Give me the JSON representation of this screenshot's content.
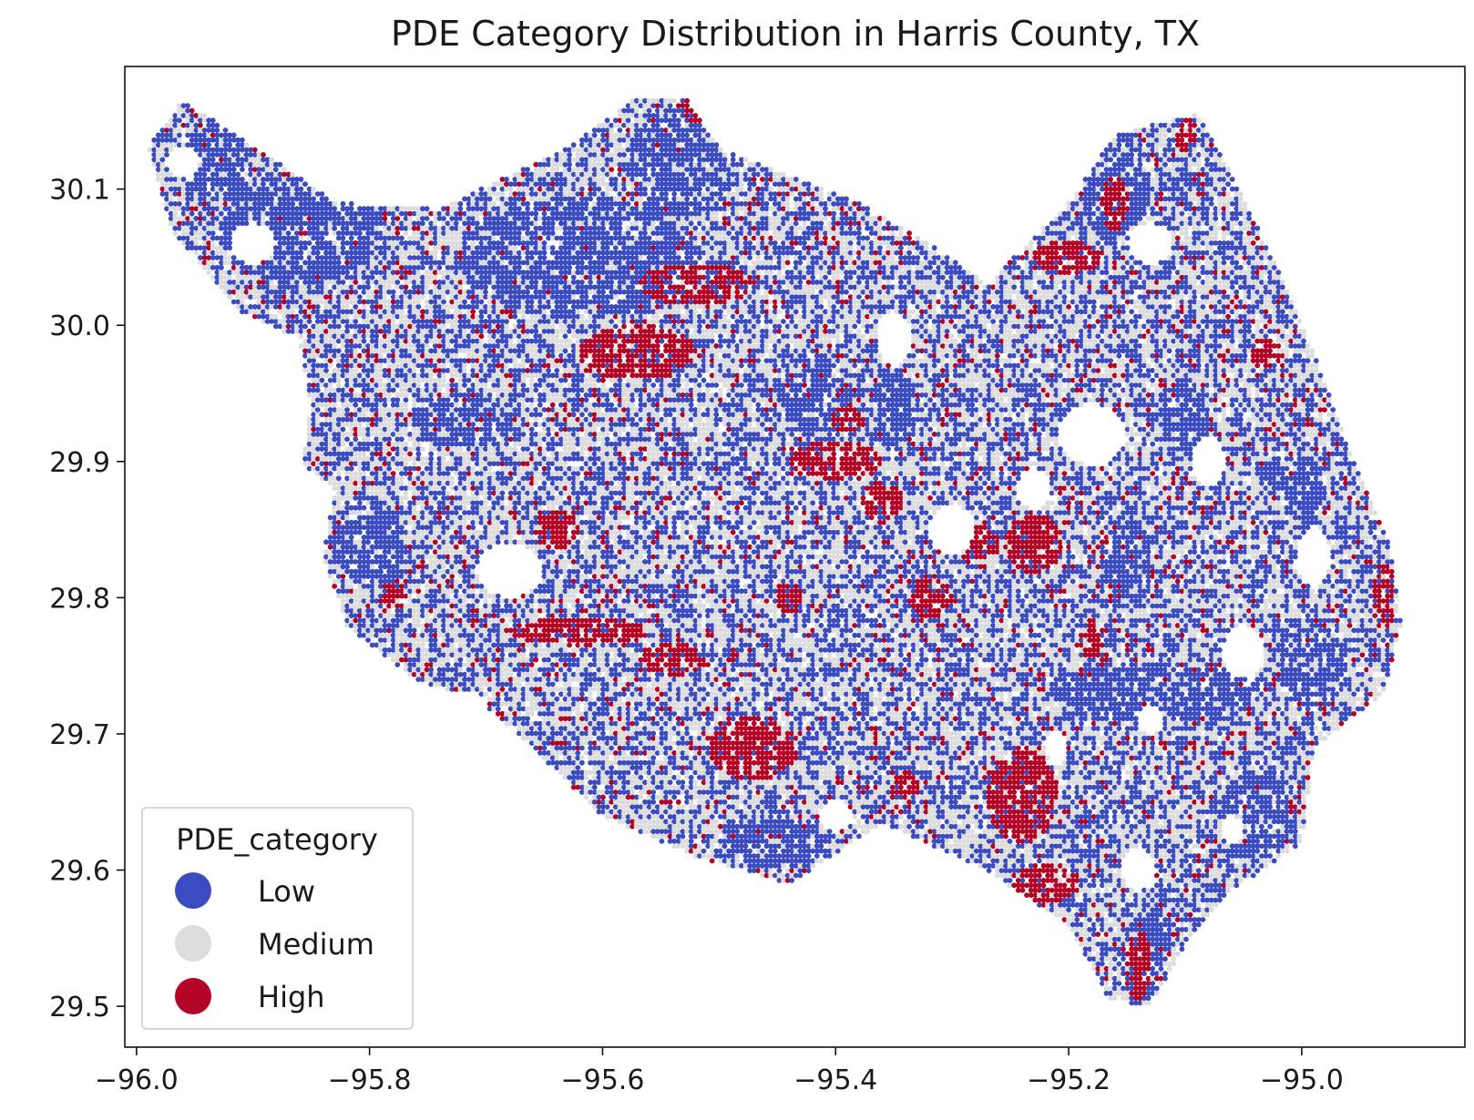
{
  "chart_data": {
    "type": "scatter",
    "title": "PDE Category Distribution in Harris County, TX",
    "xlabel": "",
    "ylabel": "",
    "xlim": [
      -96.01,
      -94.86
    ],
    "ylim": [
      29.47,
      30.19
    ],
    "x_ticks": [
      {
        "value": -96.0,
        "label": "−96.0"
      },
      {
        "value": -95.8,
        "label": "−95.8"
      },
      {
        "value": -95.6,
        "label": "−95.6"
      },
      {
        "value": -95.4,
        "label": "−95.4"
      },
      {
        "value": -95.2,
        "label": "−95.2"
      },
      {
        "value": -95.0,
        "label": "−95.0"
      }
    ],
    "y_ticks": [
      {
        "value": 29.5,
        "label": "29.5"
      },
      {
        "value": 29.6,
        "label": "29.6"
      },
      {
        "value": 29.7,
        "label": "29.7"
      },
      {
        "value": 29.8,
        "label": "29.8"
      },
      {
        "value": 29.9,
        "label": "29.9"
      },
      {
        "value": 30.0,
        "label": "30.0"
      },
      {
        "value": 30.1,
        "label": "30.1"
      }
    ],
    "grid": false,
    "legend": {
      "title": "PDE_category",
      "placement": "lower-left",
      "entries": [
        {
          "label": "Low",
          "color": "#3b4cc0"
        },
        {
          "label": "Medium",
          "color": "#dddddd"
        },
        {
          "label": "High",
          "color": "#b40426"
        }
      ]
    },
    "county_outline": [
      [
        -95.96,
        30.165
      ],
      [
        -95.88,
        30.12
      ],
      [
        -95.83,
        30.09
      ],
      [
        -95.74,
        30.085
      ],
      [
        -95.68,
        30.11
      ],
      [
        -95.63,
        30.13
      ],
      [
        -95.57,
        30.168
      ],
      [
        -95.53,
        30.168
      ],
      [
        -95.5,
        30.13
      ],
      [
        -95.44,
        30.11
      ],
      [
        -95.38,
        30.09
      ],
      [
        -95.32,
        30.06
      ],
      [
        -95.27,
        30.03
      ],
      [
        -95.2,
        30.09
      ],
      [
        -95.16,
        30.14
      ],
      [
        -95.09,
        30.155
      ],
      [
        -95.06,
        30.11
      ],
      [
        -95.02,
        30.04
      ],
      [
        -94.99,
        29.98
      ],
      [
        -94.96,
        29.91
      ],
      [
        -94.925,
        29.84
      ],
      [
        -94.915,
        29.78
      ],
      [
        -94.93,
        29.73
      ],
      [
        -94.99,
        29.69
      ],
      [
        -95.0,
        29.62
      ],
      [
        -95.06,
        29.585
      ],
      [
        -95.1,
        29.545
      ],
      [
        -95.13,
        29.5
      ],
      [
        -95.165,
        29.505
      ],
      [
        -95.2,
        29.56
      ],
      [
        -95.27,
        29.6
      ],
      [
        -95.36,
        29.635
      ],
      [
        -95.44,
        29.59
      ],
      [
        -95.52,
        29.61
      ],
      [
        -95.6,
        29.64
      ],
      [
        -95.66,
        29.69
      ],
      [
        -95.7,
        29.72
      ],
      [
        -95.76,
        29.74
      ],
      [
        -95.82,
        29.78
      ],
      [
        -95.84,
        29.83
      ],
      [
        -95.83,
        29.88
      ],
      [
        -95.86,
        29.9
      ],
      [
        -95.85,
        29.94
      ],
      [
        -95.86,
        29.99
      ],
      [
        -95.91,
        30.01
      ],
      [
        -95.97,
        30.07
      ],
      [
        -95.99,
        30.13
      ]
    ],
    "holes": [
      {
        "center": [
          -95.68,
          29.82
        ],
        "radius": [
          0.028,
          0.02
        ]
      },
      {
        "center": [
          -95.88,
          29.9
        ],
        "radius": [
          0.02,
          0.018
        ]
      },
      {
        "center": [
          -95.9,
          30.06
        ],
        "radius": [
          0.02,
          0.015
        ]
      },
      {
        "center": [
          -95.72,
          29.72
        ],
        "radius": [
          0.02,
          0.012
        ]
      },
      {
        "center": [
          -95.18,
          29.92
        ],
        "radius": [
          0.03,
          0.022
        ]
      },
      {
        "center": [
          -95.3,
          29.85
        ],
        "radius": [
          0.02,
          0.018
        ]
      },
      {
        "center": [
          -95.05,
          29.76
        ],
        "radius": [
          0.018,
          0.02
        ]
      },
      {
        "center": [
          -95.23,
          29.88
        ],
        "radius": [
          0.015,
          0.015
        ]
      },
      {
        "center": [
          -95.35,
          29.99
        ],
        "radius": [
          0.015,
          0.02
        ]
      },
      {
        "center": [
          -95.4,
          29.64
        ],
        "radius": [
          0.014,
          0.012
        ]
      },
      {
        "center": [
          -95.14,
          29.6
        ],
        "radius": [
          0.015,
          0.015
        ]
      },
      {
        "center": [
          -95.13,
          30.06
        ],
        "radius": [
          0.02,
          0.015
        ]
      },
      {
        "center": [
          -95.08,
          29.9
        ],
        "radius": [
          0.015,
          0.018
        ]
      },
      {
        "center": [
          -95.13,
          29.71
        ],
        "radius": [
          0.012,
          0.01
        ]
      },
      {
        "center": [
          -95.21,
          29.69
        ],
        "radius": [
          0.01,
          0.012
        ]
      },
      {
        "center": [
          -95.06,
          29.63
        ],
        "radius": [
          0.01,
          0.01
        ]
      },
      {
        "center": [
          -94.99,
          29.83
        ],
        "radius": [
          0.014,
          0.022
        ]
      },
      {
        "center": [
          -95.96,
          30.12
        ],
        "radius": [
          0.015,
          0.012
        ]
      }
    ],
    "high_zones": [
      {
        "center": [
          -95.47,
          29.69
        ],
        "radius": [
          0.038,
          0.024
        ]
      },
      {
        "center": [
          -95.24,
          29.655
        ],
        "radius": [
          0.03,
          0.035
        ]
      },
      {
        "center": [
          -95.22,
          29.59
        ],
        "radius": [
          0.03,
          0.015
        ]
      },
      {
        "center": [
          -95.62,
          29.775
        ],
        "radius": [
          0.06,
          0.01
        ]
      },
      {
        "center": [
          -95.54,
          29.755
        ],
        "radius": [
          0.03,
          0.012
        ]
      },
      {
        "center": [
          -95.4,
          29.9
        ],
        "radius": [
          0.04,
          0.015
        ]
      },
      {
        "center": [
          -95.23,
          29.84
        ],
        "radius": [
          0.025,
          0.022
        ]
      },
      {
        "center": [
          -95.28,
          29.84
        ],
        "radius": [
          0.02,
          0.012
        ]
      },
      {
        "center": [
          -95.32,
          29.8
        ],
        "radius": [
          0.02,
          0.015
        ]
      },
      {
        "center": [
          -95.57,
          29.98
        ],
        "radius": [
          0.05,
          0.02
        ]
      },
      {
        "center": [
          -95.52,
          30.03
        ],
        "radius": [
          0.05,
          0.015
        ]
      },
      {
        "center": [
          -95.64,
          29.85
        ],
        "radius": [
          0.02,
          0.014
        ]
      },
      {
        "center": [
          -95.2,
          30.05
        ],
        "radius": [
          0.03,
          0.012
        ]
      },
      {
        "center": [
          -95.16,
          30.09
        ],
        "radius": [
          0.012,
          0.02
        ]
      },
      {
        "center": [
          -95.1,
          30.14
        ],
        "radius": [
          0.01,
          0.012
        ]
      },
      {
        "center": [
          -95.03,
          29.98
        ],
        "radius": [
          0.015,
          0.012
        ]
      },
      {
        "center": [
          -95.14,
          29.53
        ],
        "radius": [
          0.012,
          0.025
        ]
      },
      {
        "center": [
          -95.36,
          29.87
        ],
        "radius": [
          0.018,
          0.015
        ]
      },
      {
        "center": [
          -95.78,
          29.8
        ],
        "radius": [
          0.012,
          0.012
        ]
      },
      {
        "center": [
          -94.93,
          29.8
        ],
        "radius": [
          0.01,
          0.025
        ]
      },
      {
        "center": [
          -95.44,
          29.8
        ],
        "radius": [
          0.012,
          0.012
        ]
      },
      {
        "center": [
          -95.34,
          29.66
        ],
        "radius": [
          0.012,
          0.012
        ]
      },
      {
        "center": [
          -95.39,
          29.93
        ],
        "radius": [
          0.015,
          0.01
        ]
      },
      {
        "center": [
          -95.18,
          29.77
        ],
        "radius": [
          0.01,
          0.015
        ]
      },
      {
        "center": [
          -95.52,
          30.16
        ],
        "radius": [
          0.01,
          0.012
        ]
      }
    ],
    "low_zones": [
      {
        "center": [
          -95.13,
          29.73
        ],
        "radius": [
          0.09,
          0.022
        ]
      },
      {
        "center": [
          -95.04,
          29.64
        ],
        "radius": [
          0.03,
          0.035
        ]
      },
      {
        "center": [
          -95.62,
          30.05
        ],
        "radius": [
          0.1,
          0.045
        ]
      },
      {
        "center": [
          -95.53,
          30.12
        ],
        "radius": [
          0.05,
          0.04
        ]
      },
      {
        "center": [
          -95.86,
          30.07
        ],
        "radius": [
          0.07,
          0.04
        ]
      },
      {
        "center": [
          -95.93,
          30.12
        ],
        "radius": [
          0.03,
          0.03
        ]
      },
      {
        "center": [
          -95.8,
          29.84
        ],
        "radius": [
          0.03,
          0.035
        ]
      },
      {
        "center": [
          -95.42,
          29.95
        ],
        "radius": [
          0.03,
          0.03
        ]
      },
      {
        "center": [
          -95.16,
          30.1
        ],
        "radius": [
          0.03,
          0.04
        ]
      },
      {
        "center": [
          -94.99,
          29.75
        ],
        "radius": [
          0.03,
          0.03
        ]
      },
      {
        "center": [
          -95.35,
          29.94
        ],
        "radius": [
          0.02,
          0.03
        ]
      },
      {
        "center": [
          -95.45,
          29.62
        ],
        "radius": [
          0.04,
          0.02
        ]
      },
      {
        "center": [
          -95.72,
          29.93
        ],
        "radius": [
          0.04,
          0.02
        ]
      },
      {
        "center": [
          -95.15,
          29.83
        ],
        "radius": [
          0.02,
          0.03
        ]
      },
      {
        "center": [
          -95.1,
          29.93
        ],
        "radius": [
          0.02,
          0.03
        ]
      },
      {
        "center": [
          -95.0,
          29.88
        ],
        "radius": [
          0.02,
          0.025
        ]
      },
      {
        "center": [
          -95.13,
          29.55
        ],
        "radius": [
          0.02,
          0.02
        ]
      }
    ]
  }
}
